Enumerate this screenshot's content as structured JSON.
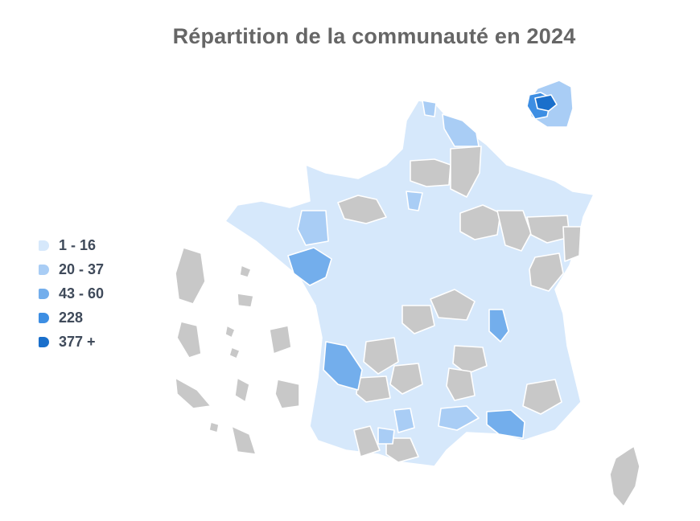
{
  "title": "Répartition de la communauté en 2024",
  "legend": [
    {
      "label": "1 - 16",
      "color": "#d6e8fb"
    },
    {
      "label": "20 - 37",
      "color": "#a9cdf5"
    },
    {
      "label": "43 - 60",
      "color": "#73aeec"
    },
    {
      "label": "228",
      "color": "#3d8ee3"
    },
    {
      "label": "377 +",
      "color": "#1a6fcb"
    }
  ],
  "colors": {
    "no_data": "#c8c8c8",
    "border": "#ffffff"
  }
}
